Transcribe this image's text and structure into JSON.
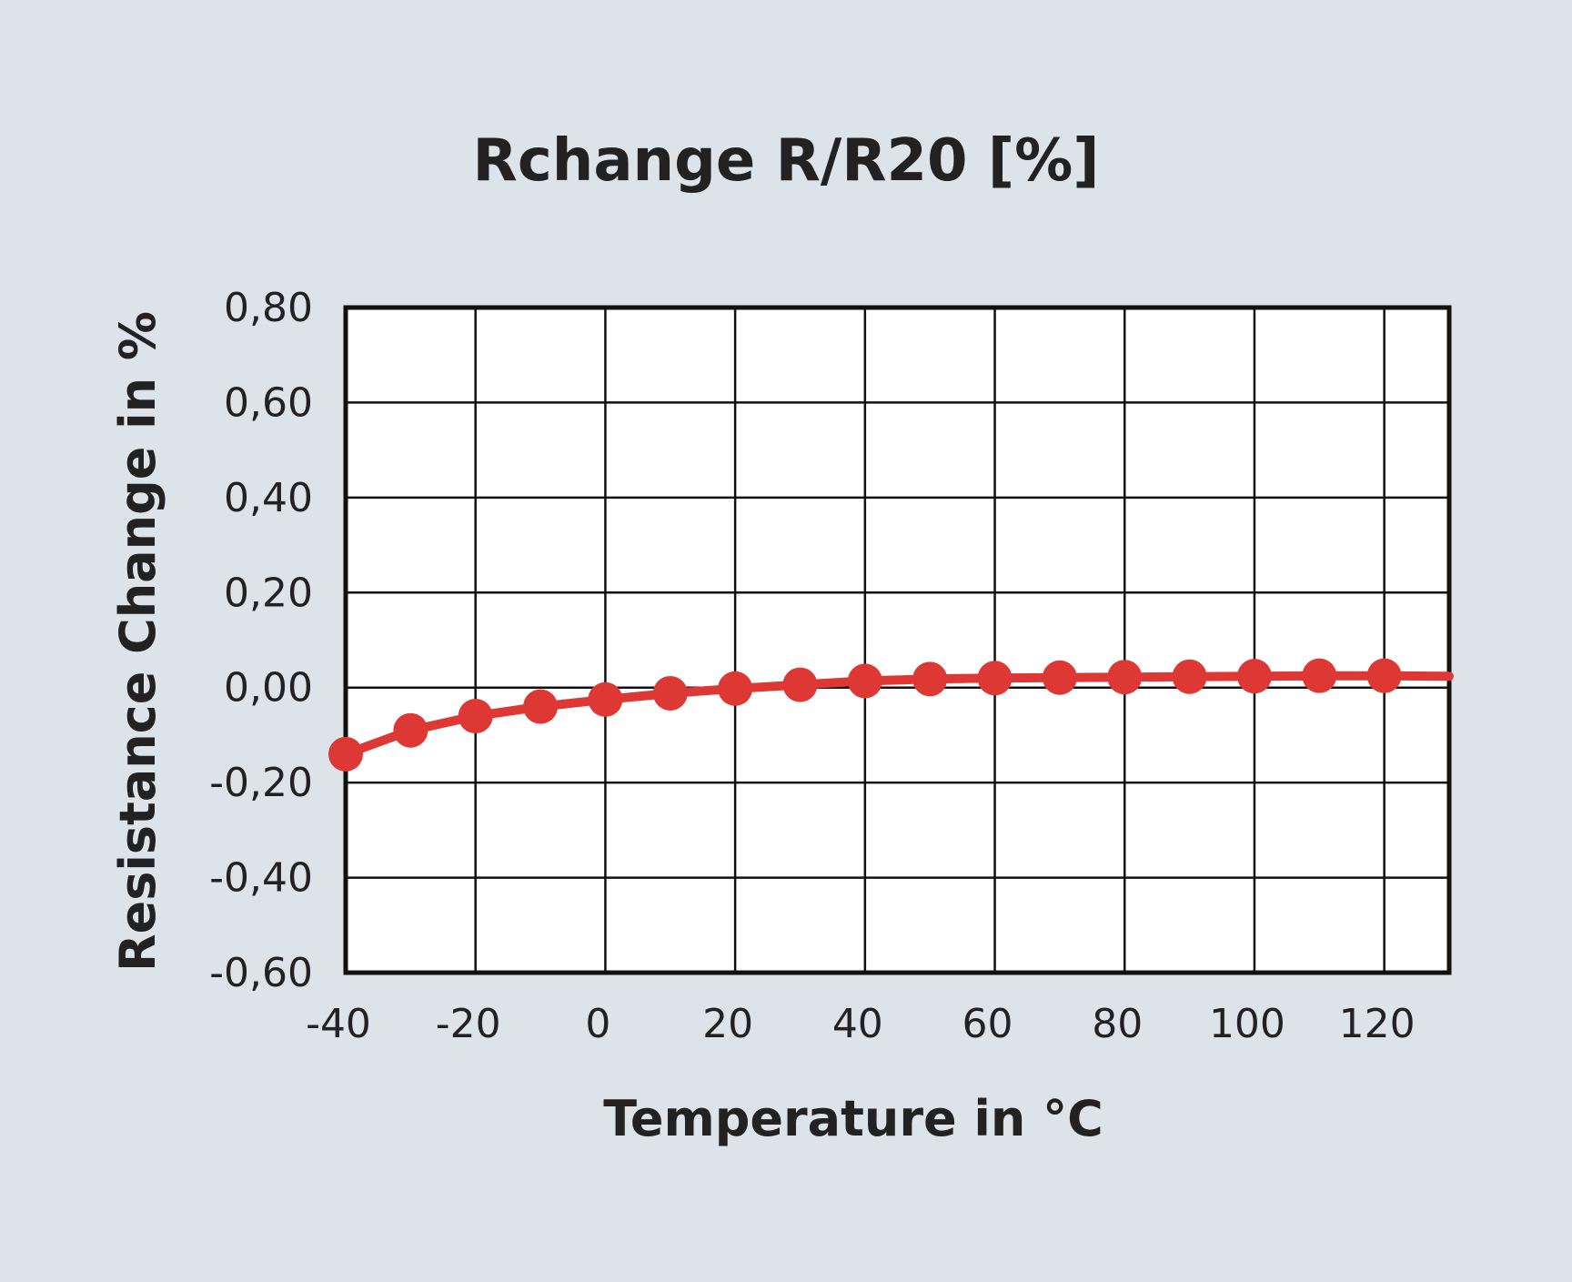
{
  "chart_data": {
    "type": "line",
    "title": "Rchange R/R20 [%]",
    "xlabel": "Temperature in °C",
    "ylabel": "Resistance Change in %",
    "xlim": [
      -40,
      130
    ],
    "ylim": [
      -0.6,
      0.8
    ],
    "x_ticks": [
      -40,
      -20,
      0,
      20,
      40,
      60,
      80,
      100,
      120
    ],
    "x_tick_labels": [
      "-40",
      "-20",
      "0",
      "20",
      "40",
      "60",
      "80",
      "100",
      "120"
    ],
    "y_ticks": [
      0.8,
      0.6,
      0.4,
      0.2,
      0.0,
      -0.2,
      -0.4,
      -0.6
    ],
    "y_tick_labels": [
      "0,80",
      "0,60",
      "0,40",
      "0,20",
      "0,00",
      "-0,20",
      "-0,40",
      "-0,60"
    ],
    "x_grid": [
      -40,
      -20,
      0,
      20,
      40,
      60,
      80,
      100,
      120
    ],
    "grid": true,
    "series": [
      {
        "color": "#dd3833",
        "x": [
          -40,
          -30,
          -20,
          -10,
          0,
          10,
          20,
          30,
          40,
          50,
          60,
          70,
          80,
          90,
          100,
          110,
          120
        ],
        "y": [
          -0.14,
          -0.09,
          -0.06,
          -0.04,
          -0.025,
          -0.012,
          -0.002,
          0.006,
          0.014,
          0.018,
          0.02,
          0.021,
          0.022,
          0.023,
          0.024,
          0.025,
          0.025
        ],
        "line_end": [
          130,
          0.024
        ]
      }
    ]
  }
}
